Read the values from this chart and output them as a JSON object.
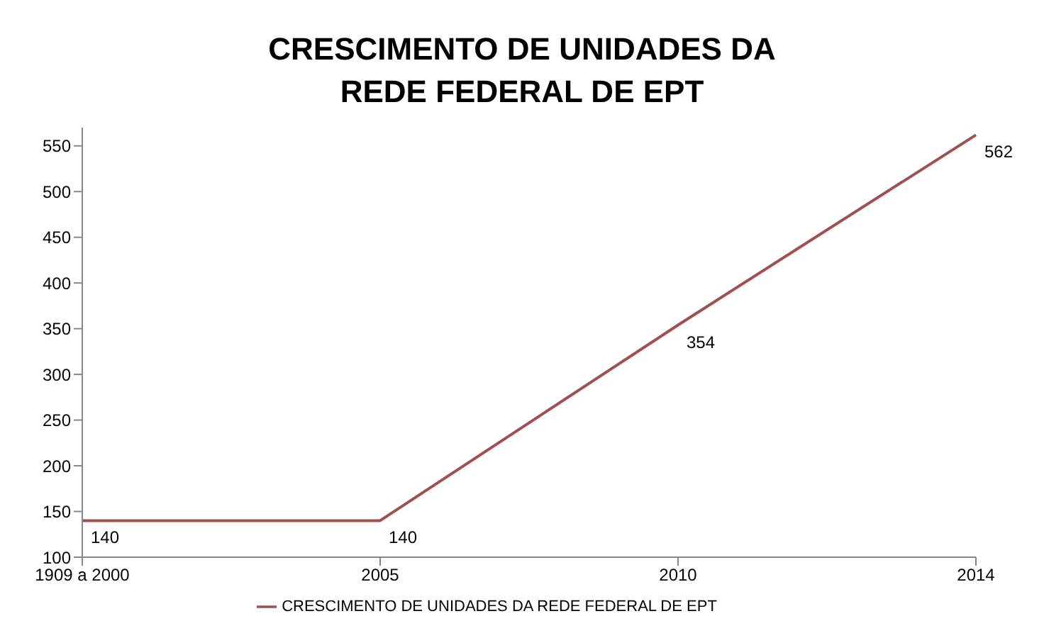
{
  "chart_data": {
    "type": "line",
    "title": "CRESCIMENTO DE UNIDADES DA REDE FEDERAL DE EPT",
    "categories": [
      "1909 a 2000",
      "2005",
      "2010",
      "2014"
    ],
    "series": [
      {
        "name": "CRESCIMENTO DE UNIDADES DA REDE FEDERAL DE EPT",
        "color": "#a0504f",
        "values": [
          140,
          140,
          354,
          562
        ]
      }
    ],
    "ylim": [
      100,
      570
    ],
    "yticks": [
      100,
      150,
      200,
      250,
      300,
      350,
      400,
      450,
      500,
      550
    ],
    "legend": "bottom",
    "marker": "none",
    "line_style": "solid",
    "data_labels": true
  }
}
